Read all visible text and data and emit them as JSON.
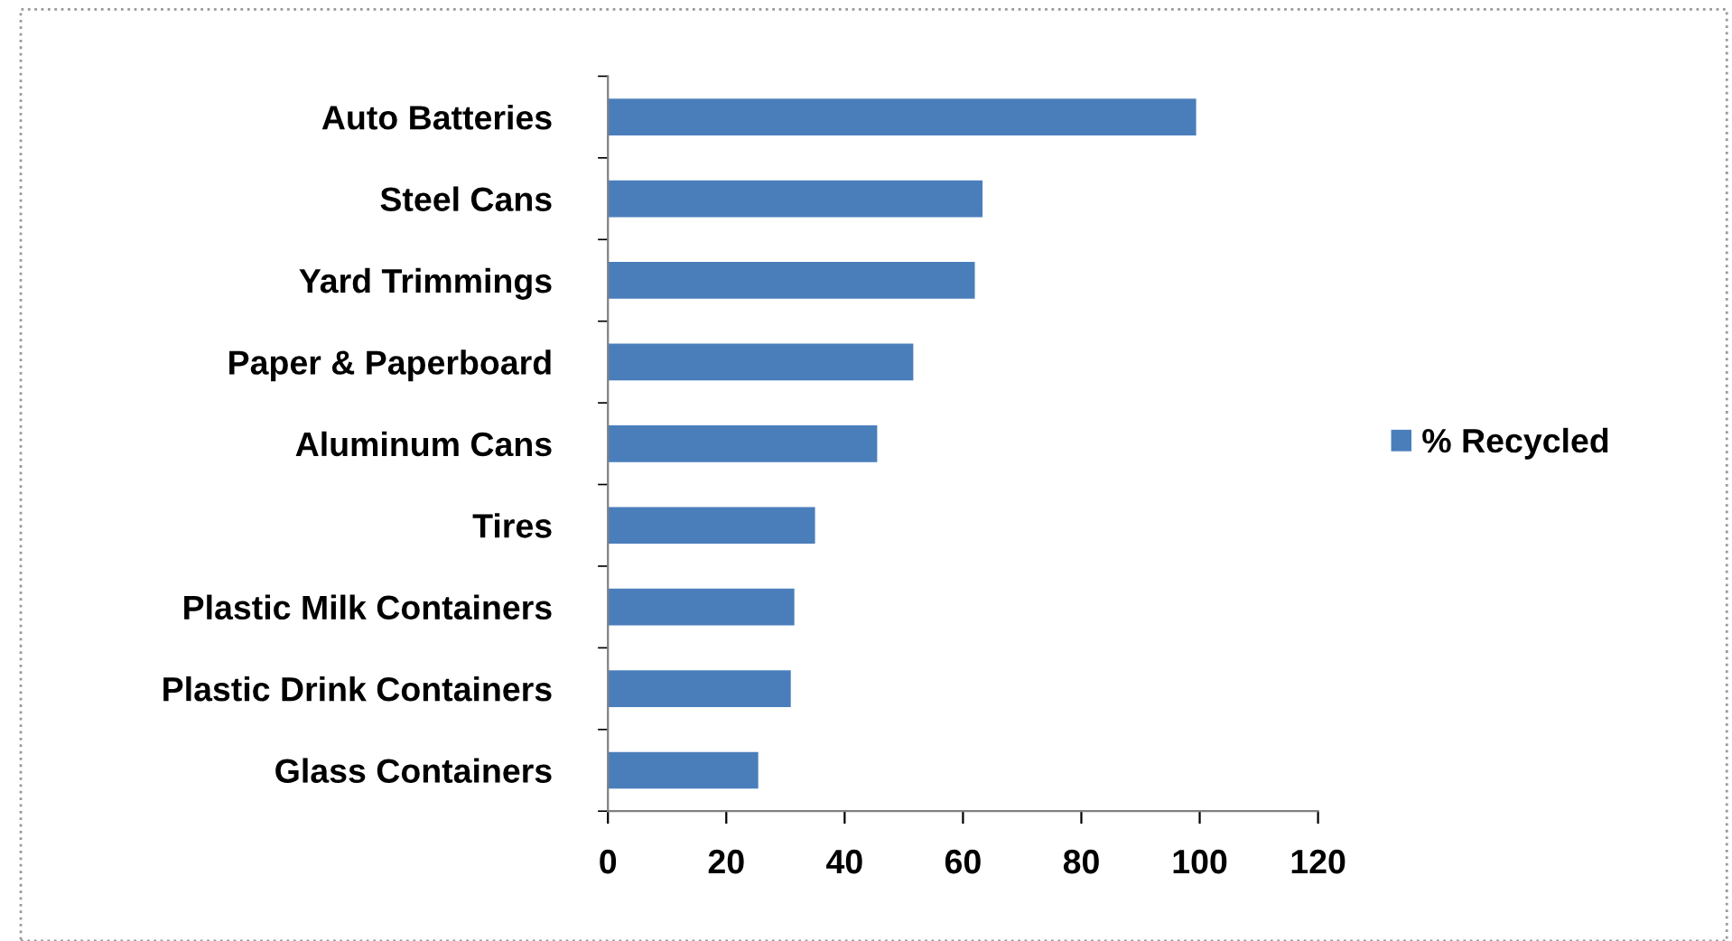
{
  "chart_data": {
    "type": "bar",
    "orientation": "horizontal",
    "categories": [
      "Auto Batteries",
      "Steel Cans",
      "Yard Trimmings",
      "Paper & Paperboard",
      "Aluminum Cans",
      "Tires",
      "Plastic Milk Containers",
      "Plastic Drink Containers",
      "Glass Containers"
    ],
    "series": [
      {
        "name": "% Recycled",
        "color": "#4a7ebb",
        "values": [
          99.4,
          63.3,
          62,
          51.6,
          45.5,
          35,
          31.5,
          30.9,
          25.4
        ]
      }
    ],
    "xlim": [
      0,
      120
    ],
    "xticks": [
      0,
      20,
      40,
      60,
      80,
      100,
      120
    ],
    "grid": false,
    "legend": "right"
  }
}
